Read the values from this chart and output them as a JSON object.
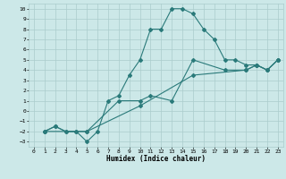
{
  "xlabel": "Humidex (Indice chaleur)",
  "xlim": [
    -0.5,
    23.5
  ],
  "ylim": [
    -3.5,
    10.5
  ],
  "yticks": [
    -3,
    -2,
    -1,
    0,
    1,
    2,
    3,
    4,
    5,
    6,
    7,
    8,
    9,
    10
  ],
  "xticks": [
    0,
    1,
    2,
    3,
    4,
    5,
    6,
    7,
    8,
    9,
    10,
    11,
    12,
    13,
    14,
    15,
    16,
    17,
    18,
    19,
    20,
    21,
    22,
    23
  ],
  "bg_color": "#cce8e8",
  "grid_color": "#aacccc",
  "line_color": "#2a7a7a",
  "line1_x": [
    1,
    2,
    3,
    4,
    5,
    6,
    7,
    8,
    9,
    10,
    11,
    12,
    13,
    14,
    15,
    16,
    17,
    18,
    19,
    20,
    21,
    22,
    23
  ],
  "line1_y": [
    -2,
    -1.5,
    -2,
    -2,
    -3,
    -2,
    1,
    1.5,
    3.5,
    5,
    8,
    8,
    10,
    10,
    9.5,
    8,
    7,
    5,
    5,
    4.5,
    4.5,
    4,
    5
  ],
  "line2_x": [
    1,
    2,
    3,
    4,
    5,
    8,
    10,
    11,
    13,
    15,
    18,
    20,
    21,
    22,
    23
  ],
  "line2_y": [
    -2,
    -1.5,
    -2,
    -2,
    -2,
    1,
    1,
    1.5,
    1,
    5,
    4,
    4,
    4.5,
    4,
    5
  ],
  "line3_x": [
    1,
    5,
    10,
    15,
    20,
    21,
    22,
    23
  ],
  "line3_y": [
    -2,
    -2,
    0.5,
    3.5,
    4,
    4.5,
    4,
    5
  ]
}
